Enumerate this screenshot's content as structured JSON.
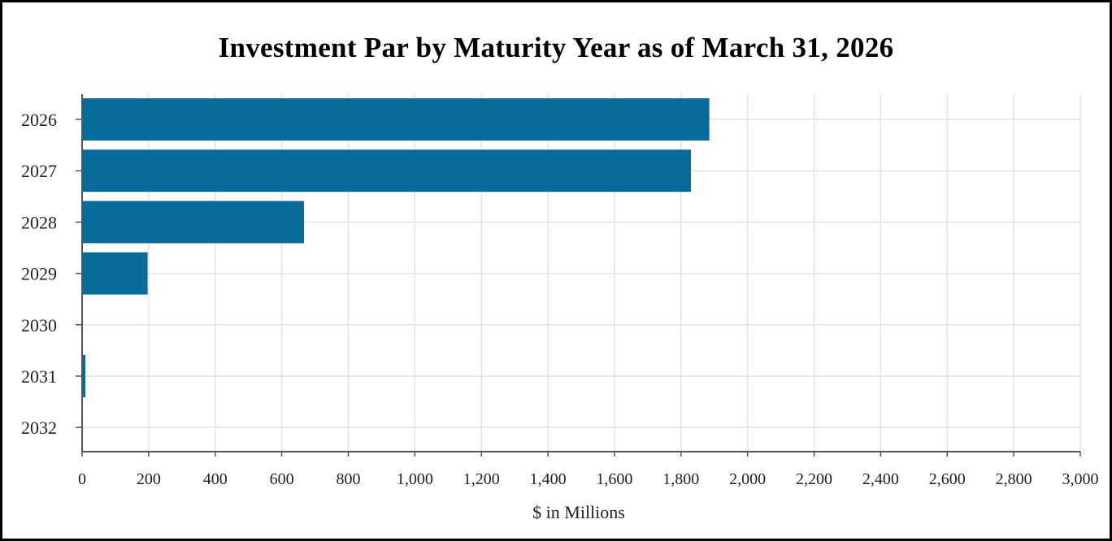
{
  "chart_data": {
    "type": "bar",
    "orientation": "horizontal",
    "title": "Investment Par by Maturity Year as of March 31, 2026",
    "xlabel": "$ in Millions",
    "ylabel": "",
    "categories": [
      "2026",
      "2027",
      "2028",
      "2029",
      "2030",
      "2031",
      "2032"
    ],
    "values": [
      1885,
      1830,
      667,
      197,
      0,
      10,
      0
    ],
    "xlim": [
      0,
      3000
    ],
    "x_ticks": [
      0,
      200,
      400,
      600,
      800,
      1000,
      1200,
      1400,
      1600,
      1800,
      2000,
      2200,
      2400,
      2600,
      2800,
      3000
    ],
    "x_tick_labels": [
      "0",
      "200",
      "400",
      "600",
      "800",
      "1,000",
      "1,200",
      "1,400",
      "1,600",
      "1,800",
      "2,000",
      "2,200",
      "2,400",
      "2,600",
      "2,800",
      "3,000"
    ],
    "grid": true,
    "legend": "none",
    "bar_color": "#076B9C"
  }
}
